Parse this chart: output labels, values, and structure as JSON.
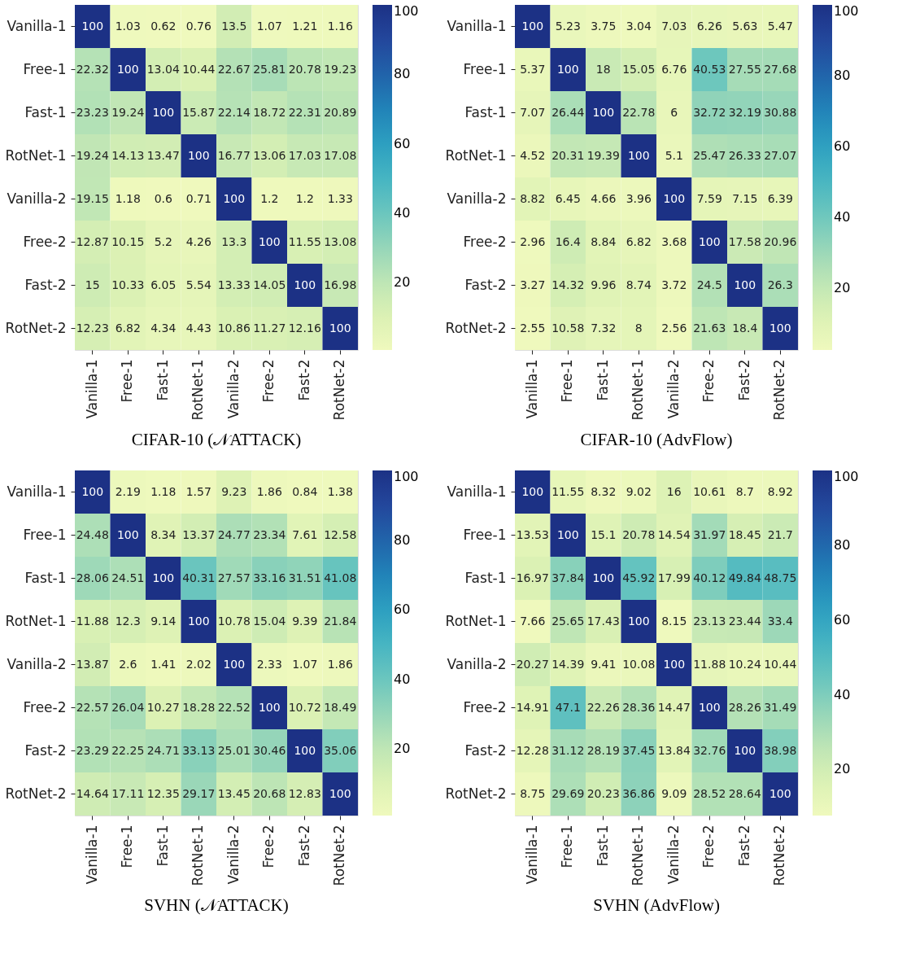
{
  "chart_data": [
    {
      "type": "heatmap",
      "title": "CIFAR-10 (𝒩ATTACK)",
      "categories": [
        "Vanilla-1",
        "Free-1",
        "Fast-1",
        "RotNet-1",
        "Vanilla-2",
        "Free-2",
        "Fast-2",
        "RotNet-2"
      ],
      "y_categories": [
        "Vanilla-1",
        "Free-1",
        "Fast-1",
        "RotNet-1",
        "Vanilla-2",
        "Free-2",
        "Fast-2",
        "RotNet-2"
      ],
      "clim": [
        0.6,
        100
      ],
      "cticks": [
        20,
        40,
        60,
        80,
        100
      ],
      "data_labels": true,
      "cells": [
        [
          100,
          1.03,
          0.62,
          0.76,
          13.5,
          1.07,
          1.21,
          1.16
        ],
        [
          22.32,
          100,
          13.04,
          10.44,
          22.67,
          25.81,
          20.78,
          19.23
        ],
        [
          23.23,
          19.24,
          100,
          15.87,
          22.14,
          18.72,
          22.31,
          20.89
        ],
        [
          19.24,
          14.13,
          13.47,
          100,
          16.77,
          13.06,
          17.03,
          17.08
        ],
        [
          19.15,
          1.18,
          0.6,
          0.71,
          100,
          1.2,
          1.2,
          1.33
        ],
        [
          12.87,
          10.15,
          5.2,
          4.26,
          13.3,
          100,
          11.55,
          13.08
        ],
        [
          15,
          10.33,
          6.05,
          5.54,
          13.33,
          14.05,
          100,
          16.98
        ],
        [
          12.23,
          6.82,
          4.34,
          4.43,
          10.86,
          11.27,
          12.16,
          100
        ]
      ]
    },
    {
      "type": "heatmap",
      "title": "CIFAR-10 (AdvFlow)",
      "categories": [
        "Vanilla-1",
        "Free-1",
        "Fast-1",
        "RotNet-1",
        "Vanilla-2",
        "Free-2",
        "Fast-2",
        "RotNet-2"
      ],
      "y_categories": [
        "Vanilla-1",
        "Free-1",
        "Fast-1",
        "RotNet-1",
        "Vanilla-2",
        "Free-2",
        "Fast-2",
        "RotNet-2"
      ],
      "clim": [
        2.55,
        100
      ],
      "cticks": [
        20,
        40,
        60,
        80,
        100
      ],
      "data_labels": true,
      "cells": [
        [
          100,
          5.23,
          3.75,
          3.04,
          7.03,
          6.26,
          5.63,
          5.47
        ],
        [
          5.37,
          100,
          18,
          15.05,
          6.76,
          40.53,
          27.55,
          27.68
        ],
        [
          7.07,
          26.44,
          100,
          22.78,
          6,
          32.72,
          32.19,
          30.88
        ],
        [
          4.52,
          20.31,
          19.39,
          100,
          5.1,
          25.47,
          26.33,
          27.07
        ],
        [
          8.82,
          6.45,
          4.66,
          3.96,
          100,
          7.59,
          7.15,
          6.39
        ],
        [
          2.96,
          16.4,
          8.84,
          6.82,
          3.68,
          100,
          17.58,
          20.96
        ],
        [
          3.27,
          14.32,
          9.96,
          8.74,
          3.72,
          24.5,
          100,
          26.3
        ],
        [
          2.55,
          10.58,
          7.32,
          8,
          2.56,
          21.63,
          18.4,
          100
        ]
      ]
    },
    {
      "type": "heatmap",
      "title": "SVHN (𝒩ATTACK)",
      "categories": [
        "Vanilla-1",
        "Free-1",
        "Fast-1",
        "RotNet-1",
        "Vanilla-2",
        "Free-2",
        "Fast-2",
        "RotNet-2"
      ],
      "y_categories": [
        "Vanilla-1",
        "Free-1",
        "Fast-1",
        "RotNet-1",
        "Vanilla-2",
        "Free-2",
        "Fast-2",
        "RotNet-2"
      ],
      "clim": [
        0.84,
        100
      ],
      "cticks": [
        20,
        40,
        60,
        80,
        100
      ],
      "data_labels": true,
      "cells": [
        [
          100,
          2.19,
          1.18,
          1.57,
          9.23,
          1.86,
          0.84,
          1.38
        ],
        [
          24.48,
          100,
          8.34,
          13.37,
          24.77,
          23.34,
          7.61,
          12.58
        ],
        [
          28.06,
          24.51,
          100,
          40.31,
          27.57,
          33.16,
          31.51,
          41.08
        ],
        [
          11.88,
          12.3,
          9.14,
          100,
          10.78,
          15.04,
          9.39,
          21.84
        ],
        [
          13.87,
          2.6,
          1.41,
          2.02,
          100,
          2.33,
          1.07,
          1.86
        ],
        [
          22.57,
          26.04,
          10.27,
          18.28,
          22.52,
          100,
          10.72,
          18.49
        ],
        [
          23.29,
          22.25,
          24.71,
          33.13,
          25.01,
          30.46,
          100,
          35.06
        ],
        [
          14.64,
          17.11,
          12.35,
          29.17,
          13.45,
          20.68,
          12.83,
          100
        ]
      ]
    },
    {
      "type": "heatmap",
      "title": "SVHN (AdvFlow)",
      "categories": [
        "Vanilla-1",
        "Free-1",
        "Fast-1",
        "RotNet-1",
        "Vanilla-2",
        "Free-2",
        "Fast-2",
        "RotNet-2"
      ],
      "y_categories": [
        "Vanilla-1",
        "Free-1",
        "Fast-1",
        "RotNet-1",
        "Vanilla-2",
        "Free-2",
        "Fast-2",
        "RotNet-2"
      ],
      "clim": [
        7.66,
        100
      ],
      "cticks": [
        20,
        40,
        60,
        80,
        100
      ],
      "data_labels": true,
      "cells": [
        [
          100,
          11.55,
          8.32,
          9.02,
          16,
          10.61,
          8.7,
          8.92
        ],
        [
          13.53,
          100,
          15.1,
          20.78,
          14.54,
          31.97,
          18.45,
          21.7
        ],
        [
          16.97,
          37.84,
          100,
          45.92,
          17.99,
          40.12,
          49.84,
          48.75
        ],
        [
          7.66,
          25.65,
          17.43,
          100,
          8.15,
          23.13,
          23.44,
          33.4
        ],
        [
          20.27,
          14.39,
          9.41,
          10.08,
          100,
          11.88,
          10.24,
          10.44
        ],
        [
          14.91,
          47.1,
          22.26,
          28.36,
          14.47,
          100,
          28.26,
          31.49
        ],
        [
          12.28,
          31.12,
          28.19,
          37.45,
          13.84,
          32.76,
          100,
          38.98
        ],
        [
          8.75,
          29.69,
          20.23,
          36.86,
          9.09,
          28.52,
          28.64,
          100
        ]
      ]
    }
  ]
}
